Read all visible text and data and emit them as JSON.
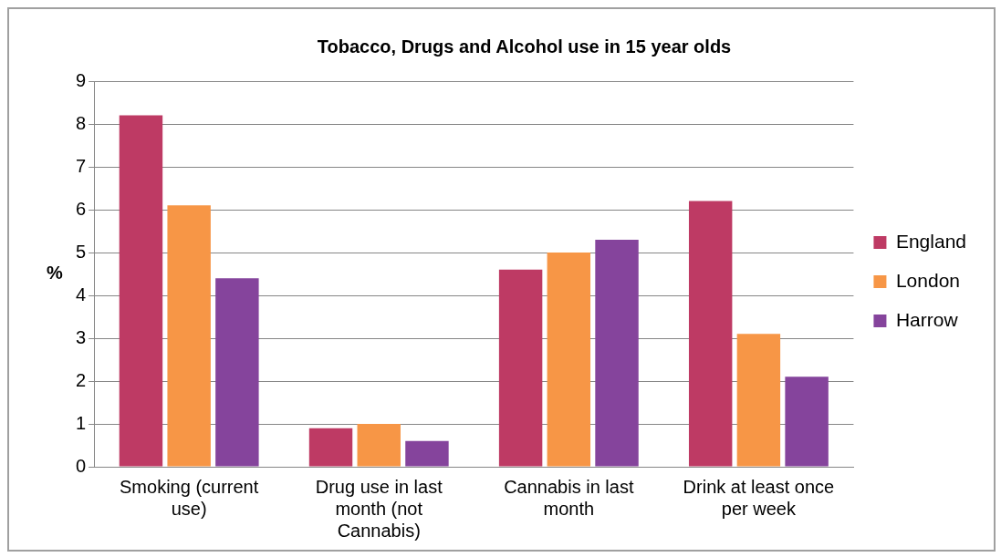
{
  "chart_data": {
    "type": "bar",
    "title": "Tobacco, Drugs and Alcohol use in 15 year olds",
    "ylabel": "%",
    "categories": [
      "Smoking (current use)",
      "Drug use in last month (not Cannabis)",
      "Cannabis in last month",
      "Drink at least once per week"
    ],
    "series": [
      {
        "name": "England",
        "color": "#be3a64",
        "values": [
          8.2,
          0.9,
          4.6,
          6.2
        ]
      },
      {
        "name": "London",
        "color": "#f79646",
        "values": [
          6.1,
          1.0,
          5.0,
          3.1
        ]
      },
      {
        "name": "Harrow",
        "color": "#85449c",
        "values": [
          4.4,
          0.6,
          5.3,
          2.1
        ]
      }
    ],
    "ylim": [
      0,
      9
    ],
    "yticks": [
      0,
      1,
      2,
      3,
      4,
      5,
      6,
      7,
      8,
      9
    ],
    "grid": "y",
    "legend": "right"
  }
}
